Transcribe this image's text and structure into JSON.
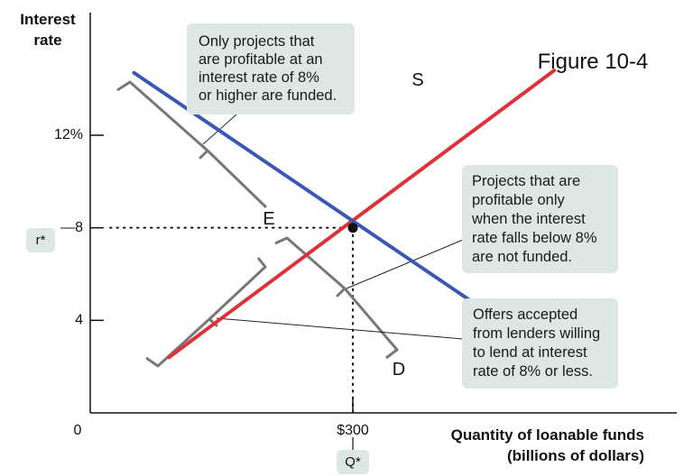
{
  "figure_title": "Figure 10-4",
  "colors": {
    "supply": "#e0303a",
    "demand": "#3a57b5",
    "bracket": "#777777",
    "callout_bg": "#dde8e6"
  },
  "chart_data": {
    "type": "line",
    "title": "",
    "xlabel": [
      "Quantity of loanable funds",
      "(billions of dollars)"
    ],
    "ylabel": [
      "Interest",
      "rate"
    ],
    "y_ticks": [
      {
        "value": 4,
        "label": "4"
      },
      {
        "value": 8,
        "label": "—8"
      },
      {
        "value": 12,
        "label": "12%"
      }
    ],
    "x_ticks": [
      {
        "value": 300,
        "label": "$300"
      }
    ],
    "origin_label": "0",
    "ylim": [
      0,
      17.3
    ],
    "xlim": [
      0,
      670
    ],
    "series": [
      {
        "name": "S",
        "points": [
          [
            90,
            2.4
          ],
          [
            530,
            14.8
          ]
        ]
      },
      {
        "name": "D",
        "points": [
          [
            50,
            14.7
          ],
          [
            530,
            2.4
          ]
        ]
      }
    ],
    "equilibrium": {
      "label": "E",
      "x": 300,
      "y": 8
    },
    "r_star_label": "r*",
    "q_star_label": "Q*",
    "annotations": [
      [
        "Only projects that",
        "are profitable at an",
        "interest rate of 8%",
        "or higher are funded."
      ],
      [
        "Projects that are",
        "profitable only",
        "when the interest",
        "rate falls below 8%",
        "are not funded."
      ],
      [
        "Offers accepted",
        "from lenders willing",
        "to lend at interest",
        "rate of 8% or less."
      ]
    ]
  }
}
